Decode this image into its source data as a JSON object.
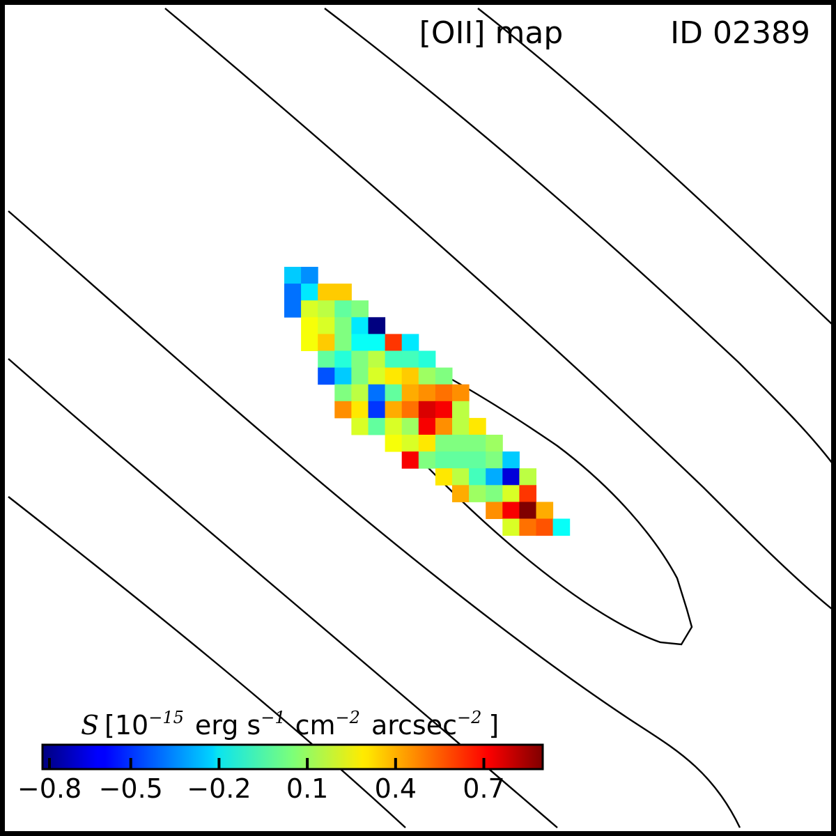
{
  "chart_data": {
    "type": "heatmap",
    "title": "[OII] map",
    "id_label": "ID 02389",
    "colormap": "jet",
    "grid_on": false,
    "value_range": [
      -0.8,
      0.9
    ],
    "colorbar": {
      "location": "bottom-left",
      "label_symbol": "S",
      "label_text": "[10^-15 erg s^-1 cm^-2 arcsec^-2]",
      "label_parts": {
        "open": "[10",
        "exp1": "−15",
        "erg": "erg s",
        "exp2": "−1",
        "cm": "cm",
        "exp3": "−2",
        "arcsec": "arcsec",
        "exp4": "−2",
        "close": "]"
      },
      "ticks": [
        -0.8,
        -0.5,
        -0.2,
        0.1,
        0.4,
        0.7
      ],
      "tick_labels": [
        "−0.8",
        "−0.5",
        "−0.2",
        "0.1",
        "0.4",
        "0.7"
      ]
    },
    "pixels": [
      {
        "row": 0,
        "col": 0,
        "value": -0.25
      },
      {
        "row": 0,
        "col": 1,
        "value": -0.35
      },
      {
        "row": 1,
        "col": 0,
        "value": -0.4
      },
      {
        "row": 1,
        "col": 1,
        "value": -0.2
      },
      {
        "row": 1,
        "col": 2,
        "value": 0.35
      },
      {
        "row": 1,
        "col": 3,
        "value": 0.35
      },
      {
        "row": 2,
        "col": 0,
        "value": -0.4
      },
      {
        "row": 2,
        "col": 1,
        "value": 0.2
      },
      {
        "row": 2,
        "col": 2,
        "value": 0.15
      },
      {
        "row": 2,
        "col": 3,
        "value": 0.0
      },
      {
        "row": 2,
        "col": 4,
        "value": 0.05
      },
      {
        "row": 3,
        "col": 1,
        "value": 0.25
      },
      {
        "row": 3,
        "col": 2,
        "value": 0.2
      },
      {
        "row": 3,
        "col": 3,
        "value": 0.05
      },
      {
        "row": 3,
        "col": 4,
        "value": -0.2
      },
      {
        "row": 3,
        "col": 5,
        "value": -0.8
      },
      {
        "row": 4,
        "col": 1,
        "value": 0.25
      },
      {
        "row": 4,
        "col": 2,
        "value": 0.35
      },
      {
        "row": 4,
        "col": 3,
        "value": 0.05
      },
      {
        "row": 4,
        "col": 4,
        "value": -0.15
      },
      {
        "row": 4,
        "col": 5,
        "value": -0.15
      },
      {
        "row": 4,
        "col": 6,
        "value": 0.6
      },
      {
        "row": 4,
        "col": 7,
        "value": -0.2
      },
      {
        "row": 5,
        "col": 2,
        "value": 0.0
      },
      {
        "row": 5,
        "col": 3,
        "value": -0.1
      },
      {
        "row": 5,
        "col": 4,
        "value": 0.05
      },
      {
        "row": 5,
        "col": 5,
        "value": 0.15
      },
      {
        "row": 5,
        "col": 6,
        "value": -0.05
      },
      {
        "row": 5,
        "col": 7,
        "value": -0.05
      },
      {
        "row": 5,
        "col": 8,
        "value": -0.1
      },
      {
        "row": 6,
        "col": 2,
        "value": -0.45
      },
      {
        "row": 6,
        "col": 3,
        "value": -0.25
      },
      {
        "row": 6,
        "col": 4,
        "value": 0.05
      },
      {
        "row": 6,
        "col": 5,
        "value": 0.2
      },
      {
        "row": 6,
        "col": 6,
        "value": 0.3
      },
      {
        "row": 6,
        "col": 7,
        "value": 0.35
      },
      {
        "row": 6,
        "col": 8,
        "value": 0.1
      },
      {
        "row": 6,
        "col": 9,
        "value": 0.05
      },
      {
        "row": 7,
        "col": 3,
        "value": 0.05
      },
      {
        "row": 7,
        "col": 4,
        "value": 0.15
      },
      {
        "row": 7,
        "col": 5,
        "value": -0.4
      },
      {
        "row": 7,
        "col": 6,
        "value": 0.0
      },
      {
        "row": 7,
        "col": 7,
        "value": 0.4
      },
      {
        "row": 7,
        "col": 8,
        "value": 0.45
      },
      {
        "row": 7,
        "col": 9,
        "value": 0.5
      },
      {
        "row": 7,
        "col": 10,
        "value": 0.45
      },
      {
        "row": 8,
        "col": 3,
        "value": 0.45
      },
      {
        "row": 8,
        "col": 4,
        "value": 0.3
      },
      {
        "row": 8,
        "col": 5,
        "value": -0.5
      },
      {
        "row": 8,
        "col": 6,
        "value": 0.4
      },
      {
        "row": 8,
        "col": 7,
        "value": 0.5
      },
      {
        "row": 8,
        "col": 8,
        "value": 0.75
      },
      {
        "row": 8,
        "col": 9,
        "value": 0.7
      },
      {
        "row": 8,
        "col": 10,
        "value": 0.15
      },
      {
        "row": 9,
        "col": 4,
        "value": 0.2
      },
      {
        "row": 9,
        "col": 5,
        "value": 0.0
      },
      {
        "row": 9,
        "col": 6,
        "value": 0.2
      },
      {
        "row": 9,
        "col": 7,
        "value": 0.1
      },
      {
        "row": 9,
        "col": 8,
        "value": 0.7
      },
      {
        "row": 9,
        "col": 9,
        "value": 0.45
      },
      {
        "row": 9,
        "col": 10,
        "value": 0.15
      },
      {
        "row": 9,
        "col": 11,
        "value": 0.3
      },
      {
        "row": 10,
        "col": 6,
        "value": 0.25
      },
      {
        "row": 10,
        "col": 7,
        "value": 0.2
      },
      {
        "row": 10,
        "col": 8,
        "value": 0.3
      },
      {
        "row": 10,
        "col": 9,
        "value": 0.05
      },
      {
        "row": 10,
        "col": 10,
        "value": 0.05
      },
      {
        "row": 10,
        "col": 11,
        "value": 0.05
      },
      {
        "row": 10,
        "col": 12,
        "value": 0.1
      },
      {
        "row": 11,
        "col": 7,
        "value": 0.7
      },
      {
        "row": 11,
        "col": 8,
        "value": 0.05
      },
      {
        "row": 11,
        "col": 9,
        "value": 0.0
      },
      {
        "row": 11,
        "col": 10,
        "value": 0.0
      },
      {
        "row": 11,
        "col": 11,
        "value": 0.0
      },
      {
        "row": 11,
        "col": 12,
        "value": 0.05
      },
      {
        "row": 11,
        "col": 13,
        "value": -0.25
      },
      {
        "row": 12,
        "col": 9,
        "value": 0.3
      },
      {
        "row": 12,
        "col": 10,
        "value": 0.15
      },
      {
        "row": 12,
        "col": 11,
        "value": -0.05
      },
      {
        "row": 12,
        "col": 12,
        "value": -0.3
      },
      {
        "row": 12,
        "col": 13,
        "value": -0.65
      },
      {
        "row": 12,
        "col": 14,
        "value": 0.15
      },
      {
        "row": 13,
        "col": 10,
        "value": 0.4
      },
      {
        "row": 13,
        "col": 11,
        "value": 0.1
      },
      {
        "row": 13,
        "col": 12,
        "value": 0.05
      },
      {
        "row": 13,
        "col": 13,
        "value": 0.2
      },
      {
        "row": 13,
        "col": 14,
        "value": 0.6
      },
      {
        "row": 14,
        "col": 12,
        "value": 0.45
      },
      {
        "row": 14,
        "col": 13,
        "value": 0.7
      },
      {
        "row": 14,
        "col": 14,
        "value": 0.9
      },
      {
        "row": 14,
        "col": 15,
        "value": 0.4
      },
      {
        "row": 15,
        "col": 13,
        "value": 0.2
      },
      {
        "row": 15,
        "col": 14,
        "value": 0.5
      },
      {
        "row": 15,
        "col": 15,
        "value": 0.55
      },
      {
        "row": 15,
        "col": 16,
        "value": -0.15
      }
    ]
  }
}
